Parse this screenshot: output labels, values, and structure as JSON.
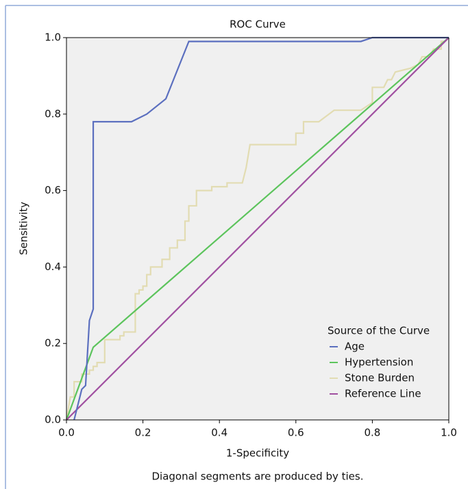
{
  "chart_data": {
    "type": "line",
    "title": "ROC Curve",
    "x_label": "1-Specificity",
    "y_label": "Sensitivity",
    "footnote": "Diagonal segments are produced by ties.",
    "legend_title": "Source of the Curve",
    "legend": "lower right",
    "xlim": [
      0,
      1
    ],
    "ylim": [
      0,
      1
    ],
    "xticks": [
      {
        "value": 0,
        "label": "0.0"
      },
      0.2,
      0.4,
      0.6,
      0.8,
      {
        "value": 1,
        "label": "1.0"
      }
    ],
    "yticks": [
      {
        "value": 0,
        "label": "0.0"
      },
      0.2,
      0.4,
      0.6,
      0.8,
      {
        "value": 1,
        "label": "1.0"
      }
    ],
    "series": [
      {
        "name": "Age",
        "color": "#5b6fbf",
        "x": [
          0.02,
          0.04,
          0.05,
          0.06,
          0.07,
          0.07,
          0.17,
          0.21,
          0.26,
          0.32,
          0.77,
          0.8,
          1.0
        ],
        "values": [
          0,
          0.08,
          0.09,
          0.26,
          0.29,
          0.78,
          0.78,
          0.8,
          0.84,
          0.99,
          0.99,
          1.0,
          1.0
        ]
      },
      {
        "name": "Hypertension",
        "color": "#5cc45c",
        "x": [
          0,
          0.07,
          1
        ],
        "values": [
          0,
          0.19,
          1
        ]
      },
      {
        "name": "Stone Burden",
        "color": "#e2dcb2",
        "x": [
          0,
          0.01,
          0.02,
          0.02,
          0.04,
          0.04,
          0.06,
          0.06,
          0.07,
          0.07,
          0.08,
          0.08,
          0.1,
          0.1,
          0.14,
          0.14,
          0.15,
          0.15,
          0.18,
          0.18,
          0.19,
          0.19,
          0.2,
          0.2,
          0.21,
          0.21,
          0.22,
          0.22,
          0.25,
          0.25,
          0.27,
          0.27,
          0.29,
          0.29,
          0.31,
          0.31,
          0.32,
          0.32,
          0.34,
          0.34,
          0.38,
          0.38,
          0.42,
          0.42,
          0.46,
          0.47,
          0.48,
          0.6,
          0.6,
          0.62,
          0.62,
          0.66,
          0.7,
          0.77,
          0.8,
          0.8,
          0.83,
          0.84,
          0.85,
          0.86,
          0.9,
          0.92,
          0.93,
          0.95,
          0.96,
          0.98,
          0.98,
          0.99,
          1
        ],
        "values": [
          0,
          0.06,
          0.06,
          0.1,
          0.1,
          0.12,
          0.12,
          0.13,
          0.13,
          0.14,
          0.14,
          0.15,
          0.15,
          0.21,
          0.21,
          0.22,
          0.22,
          0.23,
          0.23,
          0.33,
          0.33,
          0.34,
          0.34,
          0.35,
          0.35,
          0.38,
          0.38,
          0.4,
          0.4,
          0.42,
          0.42,
          0.45,
          0.45,
          0.47,
          0.47,
          0.52,
          0.52,
          0.56,
          0.56,
          0.6,
          0.6,
          0.61,
          0.61,
          0.62,
          0.62,
          0.66,
          0.72,
          0.72,
          0.75,
          0.75,
          0.78,
          0.78,
          0.81,
          0.81,
          0.83,
          0.87,
          0.87,
          0.89,
          0.89,
          0.91,
          0.92,
          0.93,
          0.95,
          0.95,
          0.97,
          0.97,
          0.99,
          0.99,
          1
        ]
      },
      {
        "name": "Reference Line",
        "color": "#a04fa0",
        "x": [
          0,
          1
        ],
        "values": [
          0,
          1
        ]
      }
    ]
  }
}
